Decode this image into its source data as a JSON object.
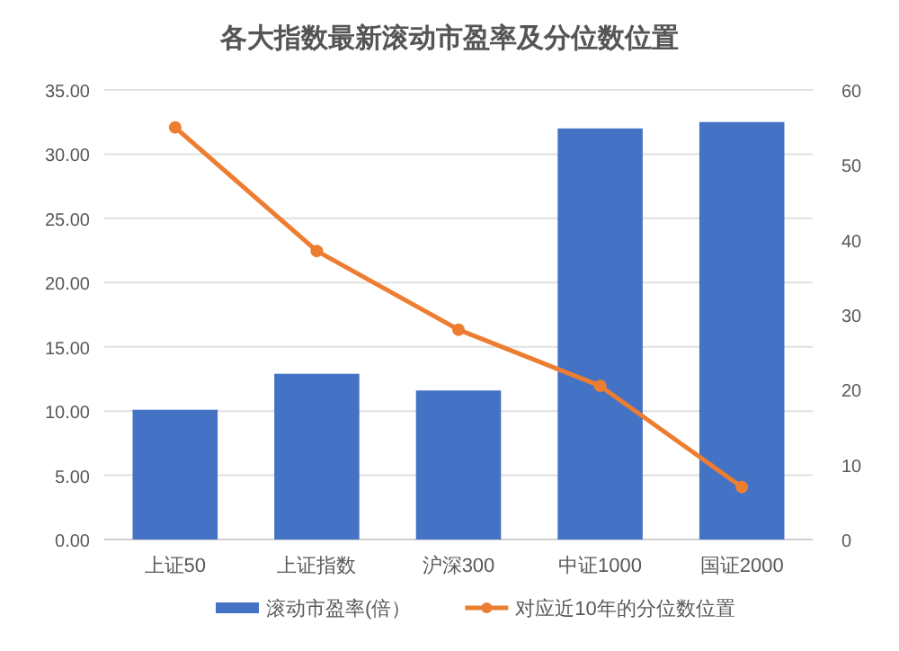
{
  "chart_data": {
    "type": "bar",
    "title": "各大指数最新滚动市盈率及分位数位置",
    "categories": [
      "上证50",
      "上证指数",
      "沪深300",
      "中证1000",
      "国证2000"
    ],
    "series": [
      {
        "name": "滚动市盈率(倍）",
        "color": "#4472c4",
        "values": [
          10.1,
          12.9,
          11.6,
          32.0,
          32.5
        ]
      },
      {
        "name": "对应近10年的分位数位置",
        "type": "line",
        "axis": "y2",
        "color": "#ed7d31",
        "marker": "circle",
        "values": [
          55,
          38.5,
          28,
          20.5,
          7
        ]
      }
    ],
    "ylim": [
      0,
      35
    ],
    "yticks": [
      {
        "value": 0,
        "label": "0.00"
      },
      {
        "value": 5,
        "label": "5.00"
      },
      {
        "value": 10,
        "label": "10.00"
      },
      {
        "value": 15,
        "label": "15.00"
      },
      {
        "value": 20,
        "label": "20.00"
      },
      {
        "value": 25,
        "label": "25.00"
      },
      {
        "value": 30,
        "label": "30.00"
      },
      {
        "value": 35,
        "label": "35.00"
      }
    ],
    "y2lim": [
      0,
      60
    ],
    "y2ticks": [
      0,
      10,
      20,
      30,
      40,
      50,
      60
    ],
    "grid": "y",
    "legend": "bottom"
  }
}
